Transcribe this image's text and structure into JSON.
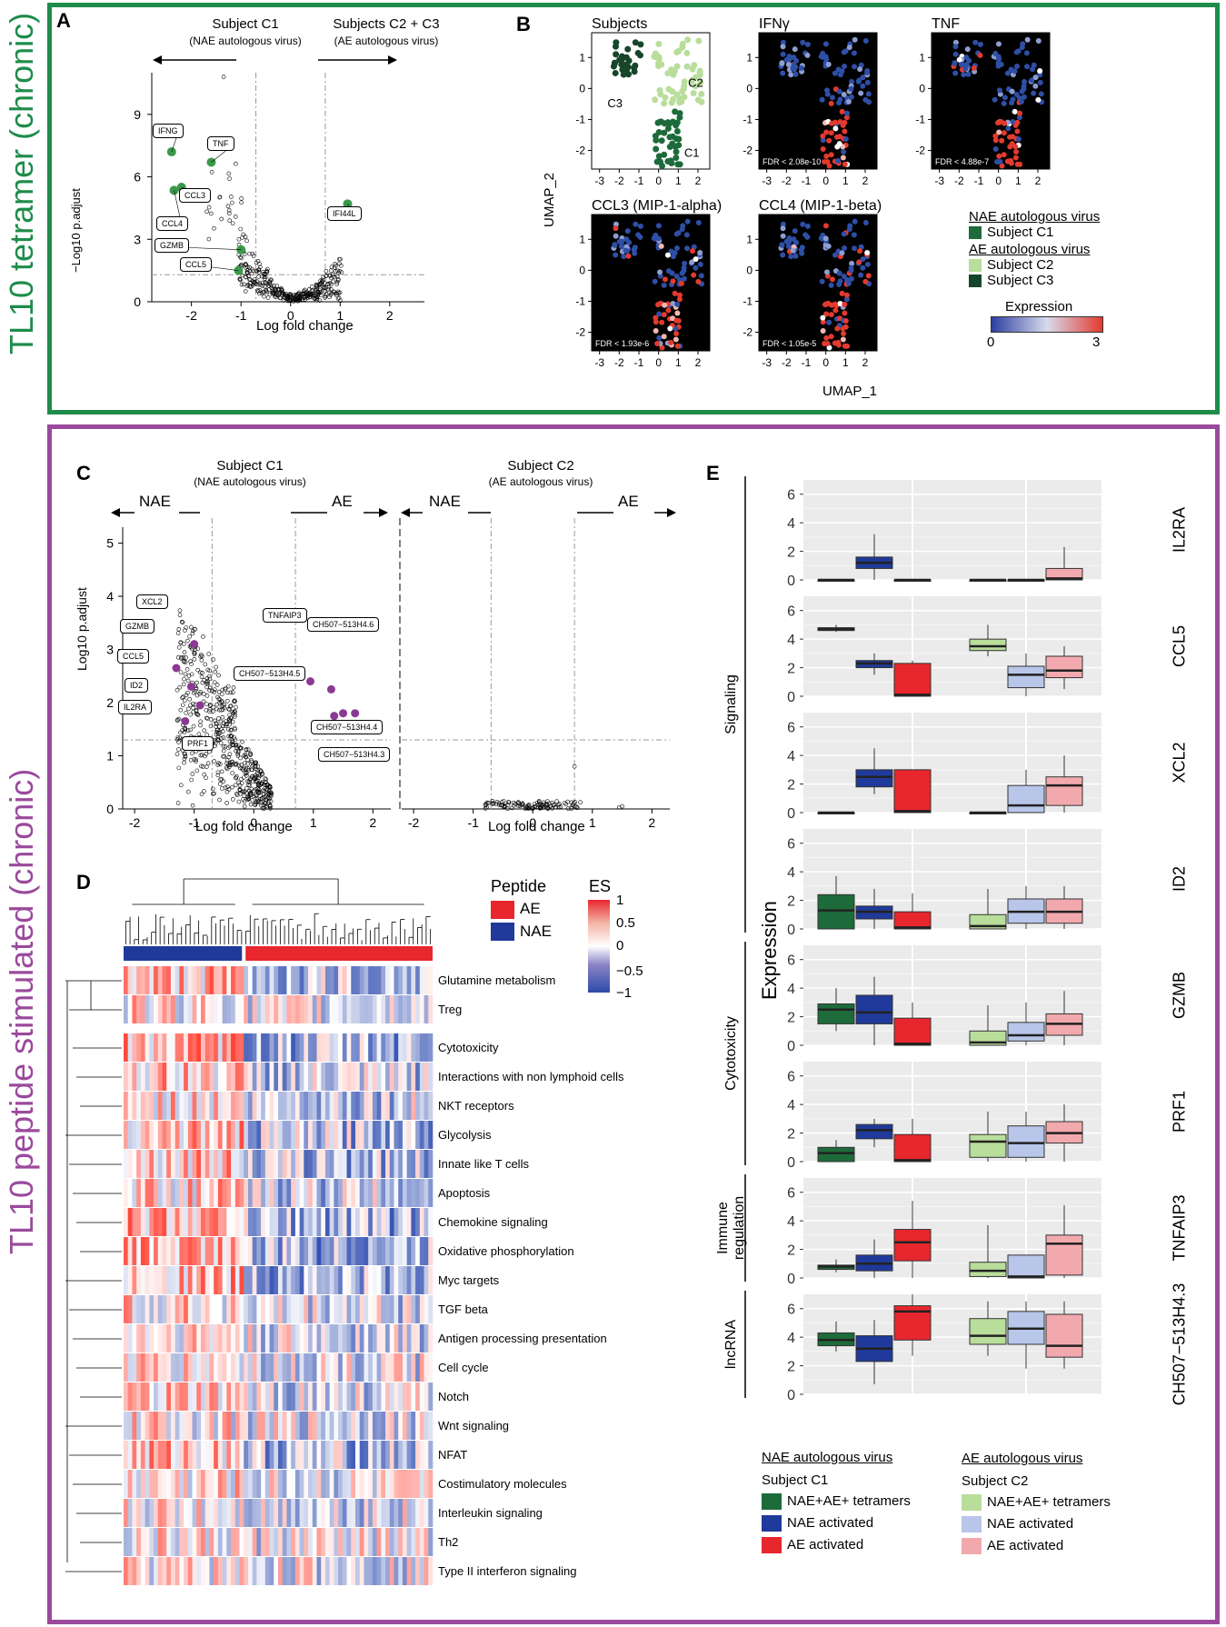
{
  "side_labels": {
    "top": "TL10 tetramer (chronic)",
    "bottom": "TL10 peptide stimulated (chronic)"
  },
  "colors": {
    "green_frame": "#1e8c4a",
    "purple_frame": "#9a4a9c",
    "dark_green": "#1d6b3a",
    "light_green": "#b9dd9b",
    "darkest_green": "#16452a",
    "blue": "#1f3a9a",
    "red": "#e8262d",
    "light_blue": "#b8c6ea",
    "pink": "#f2a9ad",
    "purple_pt": "#8b3a92"
  },
  "panel_a": {
    "letter": "A",
    "left_title": "Subject C1",
    "left_sub": "(NAE autologous virus)",
    "right_title": "Subjects C2 + C3",
    "right_sub": "(AE autologous virus)",
    "ylabel": "−Log10 p.adjust",
    "xlabel": "Log fold change",
    "yticks": [
      "0",
      "3",
      "6",
      "9"
    ],
    "xticks": [
      "-2",
      "-1",
      "0",
      "1",
      "2"
    ],
    "callouts": [
      "IFNG",
      "TNF",
      "CCL3",
      "CCL4",
      "GZMB",
      "CCL5",
      "IFI44L"
    ]
  },
  "panel_b": {
    "letter": "B",
    "titles": [
      "Subjects",
      "IFNγ",
      "TNF",
      "CCL3 (MIP-1-alpha)",
      "CCL4 (MIP-1-beta)"
    ],
    "fdr": [
      "FDR < 2.08e-10",
      "FDR < 4.88e-7",
      "FDR < 1.93e-6",
      "FDR < 1.05e-5"
    ],
    "cluster_labels": [
      "C3",
      "C2",
      "C1"
    ],
    "ylabel": "UMAP_2",
    "xlabel": "UMAP_1",
    "xticks": [
      "-3",
      "-2",
      "-1",
      "0",
      "1",
      "2"
    ],
    "yticks": [
      "1",
      "0",
      "-1",
      "-2"
    ],
    "legend": {
      "nae_head": "NAE autologous virus",
      "ae_head": "AE autologous virus",
      "c1": "Subject C1",
      "c2": "Subject C2",
      "c3": "Subject C3",
      "expr_head": "Expression",
      "expr_min": "0",
      "expr_max": "3"
    }
  },
  "panel_c": {
    "letter": "C",
    "left_title": "Subject C1",
    "left_sub": "(NAE autologous virus)",
    "right_title": "Subject C2",
    "right_sub": "(AE autologous virus)",
    "nae": "NAE",
    "ae": "AE",
    "ylabel": "Log10 p.adjust",
    "xlabel": "Log fold change",
    "yticks": [
      "0",
      "1",
      "2",
      "3",
      "4",
      "5"
    ],
    "xticks": [
      "-2",
      "-1",
      "0",
      "1",
      "2"
    ],
    "callouts": [
      "XCL2",
      "GZMB",
      "CCL5",
      "ID2",
      "IL2RA",
      "PRF1",
      "TNFAIP3",
      "CH507−513H4.6",
      "CH507−513H4.5",
      "CH507−513H4.4",
      "CH507−513H4.3"
    ]
  },
  "panel_d": {
    "letter": "D",
    "legend": {
      "peptide_head": "Peptide",
      "ae": "AE",
      "nae": "NAE",
      "es_head": "ES",
      "es_ticks": [
        "1",
        "0.5",
        "0",
        "−0.5",
        "−1"
      ]
    },
    "rows": [
      "Glutamine metabolism",
      "Treg",
      "Cytotoxicity",
      "Interactions with non lymphoid cells",
      "NKT receptors",
      "Glycolysis",
      "Innate like T cells",
      "Apoptosis",
      "Chemokine signaling",
      "Oxidative phosphorylation",
      "Myc targets",
      "TGF beta",
      "Antigen processing presentation",
      "Cell cycle",
      "Notch",
      "Wnt signaling",
      "NFAT",
      "Costimulatory molecules",
      "Interleukin signaling",
      "Th2",
      "Type II interferon signaling"
    ]
  },
  "panel_e": {
    "letter": "E",
    "ylabel": "Expression",
    "yticks": [
      "0",
      "2",
      "4",
      "6"
    ],
    "group_labels": [
      "Signaling",
      "Cytotoxicity",
      "Immune regulation",
      "lncRNA"
    ],
    "genes": [
      "IL2RA",
      "CCL5",
      "XCL2",
      "ID2",
      "GZMB",
      "PRF1",
      "TNFAIP3",
      "CH507−513H4.3"
    ],
    "legend": {
      "nae_head": "NAE autologous virus",
      "nae_subject": "Subject C1",
      "ae_head": "AE autologous virus",
      "ae_subject": "Subject C2",
      "items": [
        "NAE+AE+ tetramers",
        "NAE activated",
        "AE activated"
      ]
    }
  },
  "chart_data": [
    {
      "type": "scatter",
      "title": "Panel A volcano",
      "xlabel": "Log fold change",
      "ylabel": "−Log10 p.adjust",
      "xlim": [
        -2.8,
        2.7
      ],
      "ylim": [
        0,
        11
      ],
      "highlighted": [
        {
          "label": "IFNG",
          "x": -2.4,
          "y": 7.2
        },
        {
          "label": "TNF",
          "x": -1.6,
          "y": 6.7
        },
        {
          "label": "CCL3",
          "x": -2.2,
          "y": 5.5
        },
        {
          "label": "CCL4",
          "x": -2.35,
          "y": 5.35
        },
        {
          "label": "GZMB",
          "x": -1.0,
          "y": 2.5
        },
        {
          "label": "CCL5",
          "x": -1.05,
          "y": 1.5
        },
        {
          "label": "IFI44L",
          "x": 1.15,
          "y": 4.7
        }
      ],
      "thresholds": {
        "x": [
          -0.7,
          0.7
        ],
        "y": 1.3
      }
    },
    {
      "type": "scatter",
      "title": "Panel C Subject C1 volcano",
      "xlabel": "Log fold change",
      "ylabel": "Log10 p.adjust",
      "xlim": [
        -2.2,
        2.3
      ],
      "ylim": [
        0,
        5.3
      ],
      "highlighted": [
        {
          "label": "XCL2",
          "x": -1.0,
          "y": 3.1
        },
        {
          "label": "GZMB",
          "x": -1.3,
          "y": 2.65
        },
        {
          "label": "CCL5",
          "x": -1.05,
          "y": 2.3
        },
        {
          "label": "ID2",
          "x": -0.9,
          "y": 1.95
        },
        {
          "label": "IL2RA",
          "x": -1.15,
          "y": 1.65
        },
        {
          "label": "PRF1",
          "x": -1.0,
          "y": 1.3
        },
        {
          "label": "TNFAIP3",
          "x": 0.95,
          "y": 2.4
        },
        {
          "label": "CH507−513H4.6",
          "x": 1.3,
          "y": 2.25
        },
        {
          "label": "CH507−513H4.5",
          "x": 1.5,
          "y": 1.8
        },
        {
          "label": "CH507−513H4.4",
          "x": 1.35,
          "y": 1.75
        },
        {
          "label": "CH507−513H4.3",
          "x": 1.7,
          "y": 1.8
        }
      ],
      "thresholds": {
        "x": [
          -0.7,
          0.7
        ],
        "y": 1.3
      }
    },
    {
      "type": "scatter",
      "title": "Panel C Subject C2 volcano",
      "xlabel": "Log fold change",
      "ylabel": "Log10 p.adjust",
      "xlim": [
        -2.2,
        2.3
      ],
      "ylim": [
        0,
        5.3
      ],
      "thresholds": {
        "x": [
          -0.7,
          0.7
        ],
        "y": 1.3
      }
    },
    {
      "type": "box",
      "title": "Panel E expression",
      "ylim": [
        0,
        7
      ],
      "groups": [
        "C1 NAE+AE+ tetramers",
        "C1 NAE activated",
        "C1 AE activated",
        "C2 NAE+AE+ tetramers",
        "C2 NAE activated",
        "C2 AE activated"
      ],
      "genes": {
        "IL2RA": [
          [
            0,
            0,
            0,
            0,
            0
          ],
          [
            0,
            0.8,
            1.2,
            1.6,
            3.2
          ],
          [
            0,
            0,
            0,
            0,
            0
          ],
          [
            0,
            0,
            0,
            0,
            0
          ],
          [
            0,
            0,
            0,
            0,
            0
          ],
          [
            0,
            0,
            0.1,
            0.8,
            2.3
          ]
        ],
        "CCL5": [
          [
            4.5,
            4.6,
            4.7,
            4.8,
            5.0
          ],
          [
            1.5,
            2.0,
            2.3,
            2.5,
            3.0
          ],
          [
            0,
            0,
            0.1,
            2.3,
            2.5
          ],
          [
            2.8,
            3.2,
            3.5,
            4.0,
            5.0
          ],
          [
            0,
            0.6,
            1.5,
            2.1,
            3.0
          ],
          [
            0.5,
            1.3,
            1.8,
            2.8,
            3.5
          ]
        ],
        "XCL2": [
          [
            0,
            0,
            0,
            0,
            0
          ],
          [
            1.3,
            1.8,
            2.5,
            3.0,
            4.5
          ],
          [
            0,
            0,
            0.1,
            3.0,
            3.0
          ],
          [
            0,
            0,
            0,
            0,
            0
          ],
          [
            0,
            0,
            0.5,
            1.9,
            3.0
          ],
          [
            0,
            0.5,
            1.9,
            2.5,
            4.0
          ]
        ],
        "ID2": [
          [
            0,
            0,
            1.3,
            2.4,
            3.7
          ],
          [
            0,
            0.7,
            1.2,
            1.6,
            2.8
          ],
          [
            0,
            0,
            0.1,
            1.2,
            2.5
          ],
          [
            0,
            0,
            0.2,
            1.0,
            2.8
          ],
          [
            0,
            0.4,
            1.2,
            2.1,
            3.0
          ],
          [
            0,
            0.4,
            1.2,
            2.1,
            3.0
          ]
        ],
        "GZMB": [
          [
            1.0,
            1.5,
            2.5,
            2.9,
            4.0
          ],
          [
            0,
            1.5,
            2.3,
            3.5,
            4.8
          ],
          [
            0,
            0,
            0.1,
            1.9,
            3.0
          ],
          [
            0,
            0,
            0.2,
            1.0,
            2.8
          ],
          [
            0,
            0.3,
            0.7,
            1.6,
            3.0
          ],
          [
            0,
            0.7,
            1.5,
            2.2,
            3.8
          ]
        ],
        "PRF1": [
          [
            0,
            0,
            0.6,
            1.0,
            1.5
          ],
          [
            1.0,
            1.6,
            2.2,
            2.6,
            3.0
          ],
          [
            0,
            0,
            0.1,
            1.9,
            3.0
          ],
          [
            0,
            0.3,
            1.4,
            1.9,
            3.5
          ],
          [
            0,
            0.3,
            1.3,
            2.5,
            3.5
          ],
          [
            0,
            1.3,
            2.0,
            2.8,
            4.0
          ]
        ],
        "TNFAIP3": [
          [
            0.4,
            0.6,
            0.8,
            0.9,
            1.3
          ],
          [
            0,
            0.5,
            1.0,
            1.6,
            2.7
          ],
          [
            0,
            1.2,
            2.5,
            3.4,
            5.4
          ],
          [
            0,
            0.1,
            0.5,
            1.1,
            3.7
          ],
          [
            0,
            0,
            0.1,
            1.6,
            1.6
          ],
          [
            0,
            0.2,
            2.4,
            3.0,
            5.1
          ]
        ],
        "CH507−513H4.3": [
          [
            3.0,
            3.4,
            3.8,
            4.3,
            5.1
          ],
          [
            0.7,
            2.3,
            3.2,
            4.1,
            5.2
          ],
          [
            2.7,
            3.8,
            5.8,
            6.2,
            7.0
          ],
          [
            2.7,
            3.5,
            4.1,
            5.3,
            6.5
          ],
          [
            1.8,
            3.5,
            4.6,
            5.8,
            6.5
          ],
          [
            1.8,
            2.6,
            3.4,
            5.6,
            6.5
          ]
        ]
      }
    },
    {
      "type": "heatmap",
      "title": "Panel D enrichment score",
      "value_range": [
        -1,
        1
      ],
      "columns_NAE": 28,
      "columns_AE": 44
    }
  ]
}
